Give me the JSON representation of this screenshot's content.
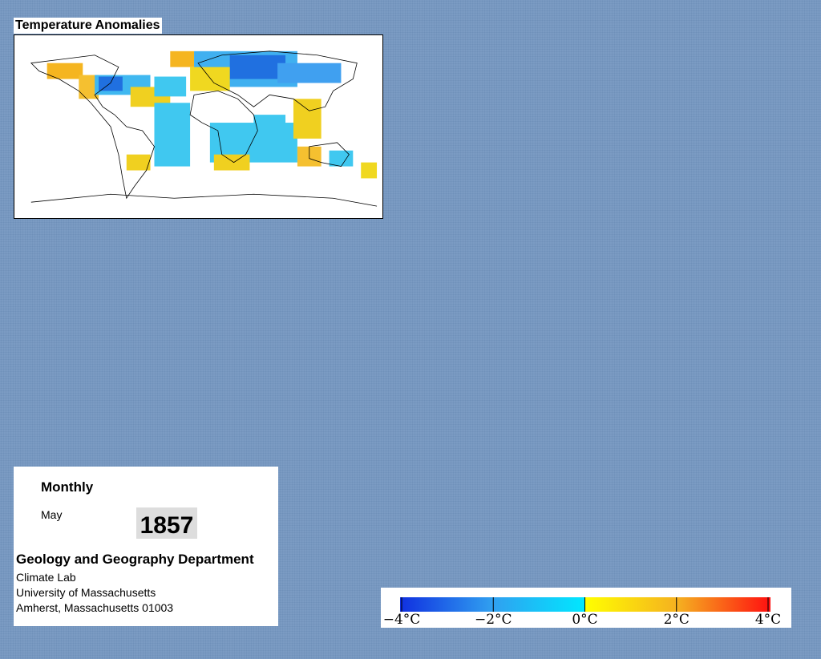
{
  "title": "Temperature Anomalies",
  "info": {
    "period": "Monthly",
    "month": "May",
    "year": "1857",
    "department": "Geology and Geography Department",
    "lines": [
      "Climate Lab",
      "University of Massachusetts",
      "Amherst, Massachusetts 01003"
    ]
  },
  "colorbar": {
    "lim": [
      -4,
      4
    ],
    "ticks": [
      {
        "value": -4,
        "label": "−4°C"
      },
      {
        "value": -2,
        "label": "−2°C"
      },
      {
        "value": 0,
        "label": "0°C"
      },
      {
        "value": 2,
        "label": "2°C"
      },
      {
        "value": 4,
        "label": "4°C"
      }
    ]
  }
}
